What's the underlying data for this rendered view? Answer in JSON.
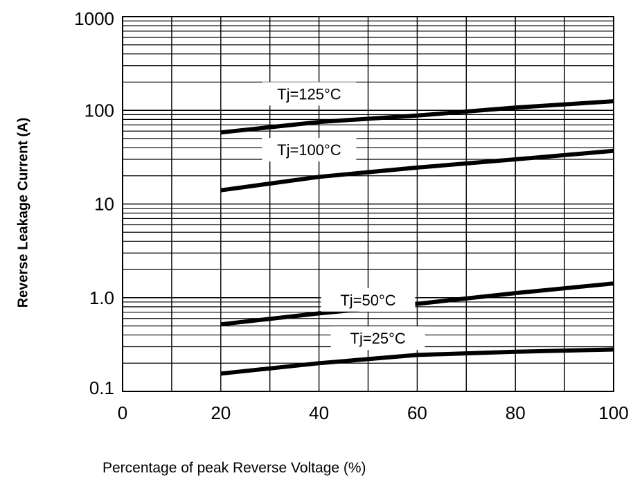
{
  "chart_data": {
    "type": "line",
    "xlabel": "Percentage of peak Reverse Voltage (%)",
    "ylabel": "Reverse Leakage Current (A)",
    "xlim": [
      0,
      100
    ],
    "ylim": [
      0.1,
      1000
    ],
    "yscale": "log",
    "x_ticks": [
      "0",
      "20",
      "40",
      "60",
      "80",
      "100"
    ],
    "y_ticks": [
      "0.1",
      "1.0",
      "10",
      "100",
      "1000"
    ],
    "grid": true,
    "series": [
      {
        "name": "Tj=125°C",
        "x": [
          20,
          40,
          60,
          80,
          100
        ],
        "y": [
          58,
          75,
          88,
          107,
          125
        ]
      },
      {
        "name": "Tj=100°C",
        "x": [
          20,
          40,
          60,
          80,
          100
        ],
        "y": [
          14,
          19.5,
          24.5,
          30,
          37
        ]
      },
      {
        "name": "Tj=50°C",
        "x": [
          20,
          40,
          60,
          80,
          100
        ],
        "y": [
          0.52,
          0.68,
          0.86,
          1.12,
          1.42
        ]
      },
      {
        "name": "Tj=25°C",
        "x": [
          20,
          40,
          60,
          80,
          100
        ],
        "y": [
          0.155,
          0.2,
          0.245,
          0.265,
          0.28
        ]
      }
    ]
  }
}
